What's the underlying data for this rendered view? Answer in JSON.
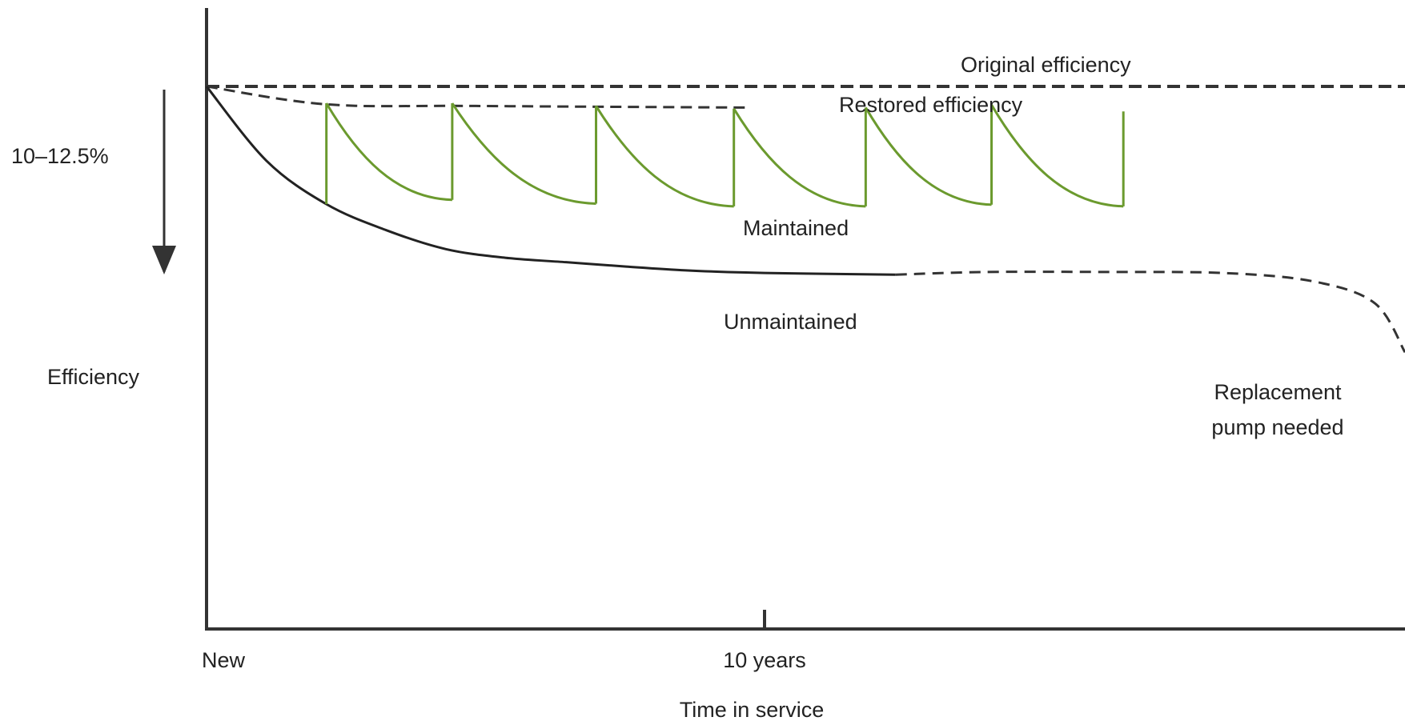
{
  "chart_data": {
    "type": "line",
    "title": "",
    "xlabel": "Time in service",
    "ylabel": "Efficiency",
    "x_ticks": [
      "New",
      "10 years"
    ],
    "xlim": [
      0,
      20
    ],
    "ylim": [
      0,
      100
    ],
    "grid": false,
    "drop_label": "10–12.5%",
    "colors": {
      "maintained": "#6b9a2e",
      "axis": "#333333",
      "text": "#222222"
    },
    "series": [
      {
        "name": "Original efficiency",
        "style": "dashed",
        "x": [
          0,
          20
        ],
        "y": [
          100,
          100
        ]
      },
      {
        "name": "Restored efficiency",
        "style": "dashed",
        "x": [
          0,
          2,
          4.5,
          9
        ],
        "y": [
          100,
          96.7,
          96.4,
          96.1
        ]
      },
      {
        "name": "Maintained",
        "style": "solid",
        "cycles": [
          {
            "x_start": 2.0,
            "x_end": 4.1,
            "y_top": 96.9,
            "y_bottom": 79.1
          },
          {
            "x_start": 4.1,
            "x_end": 6.5,
            "y_top": 96.9,
            "y_bottom": 78.4
          },
          {
            "x_start": 6.5,
            "x_end": 8.8,
            "y_top": 96.4,
            "y_bottom": 77.9
          },
          {
            "x_start": 8.8,
            "x_end": 11.0,
            "y_top": 95.9,
            "y_bottom": 77.9
          },
          {
            "x_start": 11.0,
            "x_end": 13.1,
            "y_top": 96.1,
            "y_bottom": 78.2
          },
          {
            "x_start": 13.1,
            "x_end": 15.3,
            "y_top": 96.6,
            "y_bottom": 77.9
          }
        ],
        "final_restore": {
          "x": 15.3,
          "y": 95.4
        }
      },
      {
        "name": "Unmaintained",
        "style": "solid",
        "x": [
          0,
          1,
          2,
          3,
          4,
          5,
          6,
          7,
          8,
          9,
          10,
          11.5
        ],
        "y": [
          100,
          86.3,
          78.3,
          73.5,
          70.0,
          68.4,
          67.6,
          66.8,
          66.1,
          65.7,
          65.5,
          65.3
        ]
      },
      {
        "name": "Unmaintained (projected)",
        "style": "dashed",
        "x": [
          11.5,
          13,
          15,
          17,
          18.5,
          19.5,
          20
        ],
        "y": [
          65.3,
          65.8,
          65.8,
          65.6,
          64.0,
          60.0,
          51.0
        ]
      }
    ],
    "annotations": {
      "original": "Original efficiency",
      "restored": "Restored efficiency",
      "maintained": "Maintained",
      "unmaintained": "Unmaintained",
      "replacement_line1": "Replacement",
      "replacement_line2": "pump needed"
    }
  }
}
